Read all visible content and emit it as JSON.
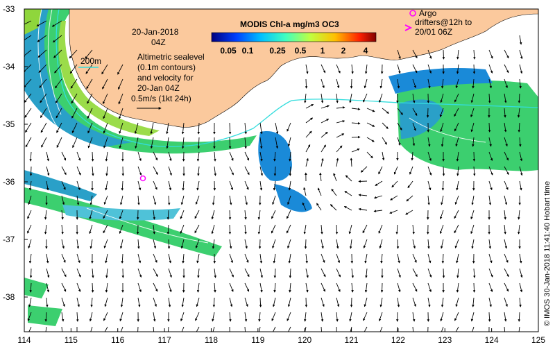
{
  "map": {
    "date_line": "20-Jan-2018",
    "time_line": "04Z",
    "isobath_label": "200m",
    "sealevel_lines": [
      "Altimetric sealevel",
      "(0.1m contours)",
      "and velocity for",
      "20-Jan 04Z",
      "0.5m/s (1kt 24h)"
    ],
    "argo_lines": [
      "Argo",
      "drifters@12h to",
      "20/01 06Z"
    ],
    "colorbar": {
      "title": "MODIS Chl-a mg/m3 OC3",
      "ticks": [
        "0.05",
        "0.1",
        "0.25",
        "0.5",
        "1",
        "2",
        "4"
      ]
    },
    "x_ticks": [
      "114",
      "115",
      "116",
      "117",
      "118",
      "119",
      "120",
      "121",
      "122",
      "123",
      "124",
      "125"
    ],
    "y_ticks": [
      "-33",
      "-34",
      "-35",
      "-36",
      "-37",
      "-38"
    ],
    "credit": "© IMOS 30-Jan-2018 11:41:40 Hobart time",
    "colors": {
      "land": "#fbc99d",
      "isobath": "#33dddd",
      "argo": "#ff00ff",
      "chl_low": "#1a8ad8",
      "chl_mid": "#3ccf6f",
      "chl_high": "#8fd63c"
    }
  }
}
